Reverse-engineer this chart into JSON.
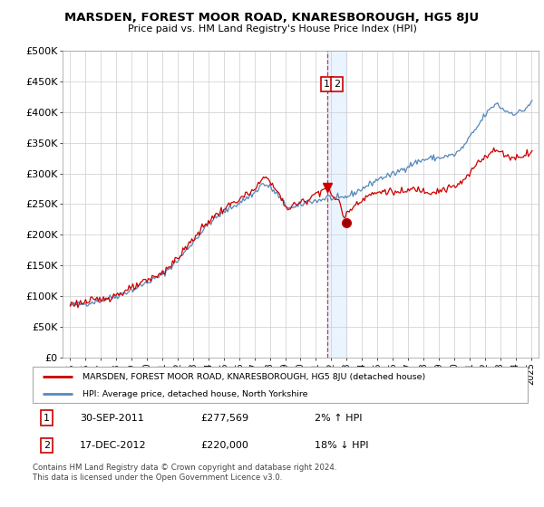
{
  "title": "MARSDEN, FOREST MOOR ROAD, KNARESBOROUGH, HG5 8JU",
  "subtitle": "Price paid vs. HM Land Registry's House Price Index (HPI)",
  "legend_line1": "MARSDEN, FOREST MOOR ROAD, KNARESBOROUGH, HG5 8JU (detached house)",
  "legend_line2": "HPI: Average price, detached house, North Yorkshire",
  "annotation1_label": "1",
  "annotation1_date": "30-SEP-2011",
  "annotation1_price": "£277,569",
  "annotation1_hpi": "2% ↑ HPI",
  "annotation2_label": "2",
  "annotation2_date": "17-DEC-2012",
  "annotation2_price": "£220,000",
  "annotation2_hpi": "18% ↓ HPI",
  "footer": "Contains HM Land Registry data © Crown copyright and database right 2024.\nThis data is licensed under the Open Government Licence v3.0.",
  "red_color": "#cc0000",
  "blue_color": "#5588bb",
  "shade_color": "#ddeeff",
  "annotation_box_color": "#cc0000",
  "ylim": [
    0,
    500000
  ],
  "yticks": [
    0,
    50000,
    100000,
    150000,
    200000,
    250000,
    300000,
    350000,
    400000,
    450000,
    500000
  ],
  "ytick_labels": [
    "£0",
    "£50K",
    "£100K",
    "£150K",
    "£200K",
    "£250K",
    "£300K",
    "£350K",
    "£400K",
    "£450K",
    "£500K"
  ],
  "marker1_x": 2011.75,
  "marker1_y": 277569,
  "marker2_x": 2012.96,
  "marker2_y": 220000,
  "vline_x": 2011.75,
  "shade_x1": 2011.75,
  "shade_x2": 2013.0,
  "xlim": [
    1994.5,
    2025.5
  ],
  "xticks": [
    1995,
    1996,
    1997,
    1998,
    1999,
    2000,
    2001,
    2002,
    2003,
    2004,
    2005,
    2006,
    2007,
    2008,
    2009,
    2010,
    2011,
    2012,
    2013,
    2014,
    2015,
    2016,
    2017,
    2018,
    2019,
    2020,
    2021,
    2022,
    2023,
    2024,
    2025
  ]
}
